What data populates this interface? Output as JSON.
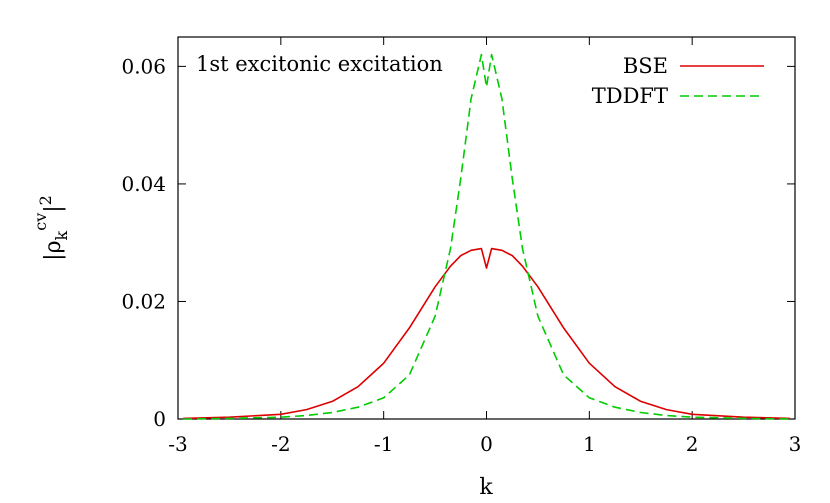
{
  "chart_data": {
    "type": "line",
    "annotation": "1st excitonic excitation",
    "xlabel": "k",
    "ylabel": {
      "base": "|ρ",
      "sub": "k",
      "sup": "cv",
      "tail": "|",
      "power": "2"
    },
    "xlim": [
      -3,
      3
    ],
    "ylim": [
      0,
      0.065
    ],
    "xticks": [
      -3,
      -2,
      -1,
      0,
      1,
      2,
      3
    ],
    "xtick_labels": [
      "-3",
      "-2",
      "-1",
      "0",
      "1",
      "2",
      "3"
    ],
    "yticks": [
      0,
      0.02,
      0.04,
      0.06
    ],
    "ytick_labels": [
      "0",
      "0.02",
      "0.04",
      "0.06"
    ],
    "grid": false,
    "legend_position": "top-right",
    "x": [
      -2.95,
      -2.5,
      -2.0,
      -1.75,
      -1.5,
      -1.25,
      -1.0,
      -0.75,
      -0.5,
      -0.35,
      -0.25,
      -0.15,
      -0.05,
      0.0,
      0.05,
      0.15,
      0.25,
      0.35,
      0.5,
      0.75,
      1.0,
      1.25,
      1.5,
      1.75,
      2.0,
      2.5,
      2.95
    ],
    "series": [
      {
        "name": "BSE",
        "color": "#dd0000",
        "dash": "solid",
        "values": [
          0.0001,
          0.0003,
          0.0008,
          0.0016,
          0.003,
          0.0055,
          0.0095,
          0.0155,
          0.0225,
          0.026,
          0.0278,
          0.0287,
          0.029,
          0.0257,
          0.029,
          0.0287,
          0.0278,
          0.026,
          0.0225,
          0.0155,
          0.0095,
          0.0055,
          0.003,
          0.0016,
          0.0008,
          0.0003,
          0.0001
        ]
      },
      {
        "name": "TDDFT",
        "color": "#00cc00",
        "dash": "dashed",
        "values": [
          0.0,
          0.0001,
          0.0003,
          0.0006,
          0.0011,
          0.002,
          0.0036,
          0.0075,
          0.0175,
          0.029,
          0.041,
          0.0545,
          0.062,
          0.0565,
          0.062,
          0.0545,
          0.041,
          0.029,
          0.0175,
          0.0075,
          0.0036,
          0.002,
          0.0011,
          0.0006,
          0.0003,
          0.0001,
          0.0
        ]
      }
    ]
  }
}
